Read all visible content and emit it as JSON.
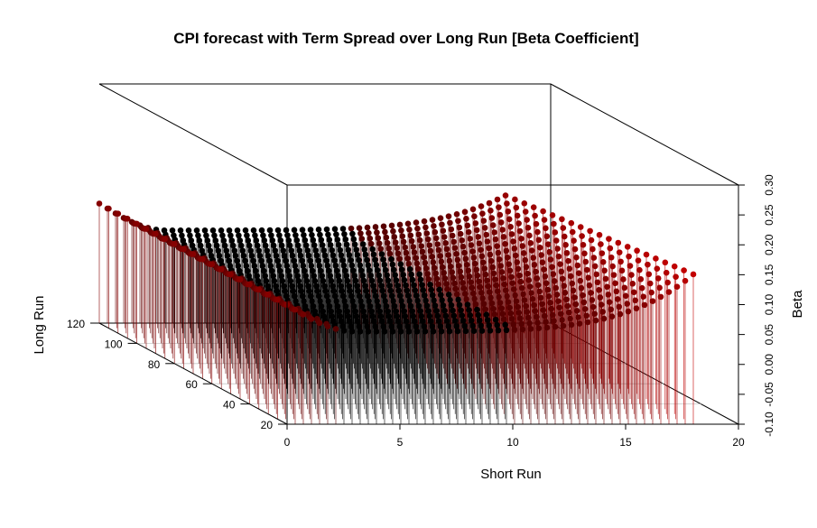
{
  "chart_data": {
    "type": "scatter",
    "subtype": "3d-histogram-lines",
    "title": "CPI forecast with Term Spread over Long Run [Beta Coefficient]",
    "xlabel": "Short Run",
    "ylabel": "Long Run",
    "zlabel": "Beta",
    "xlim": [
      0,
      20
    ],
    "ylim": [
      20,
      120
    ],
    "zlim": [
      -0.1,
      0.3
    ],
    "x_ticks": [
      "0",
      "5",
      "10",
      "15",
      "20"
    ],
    "y_ticks": [
      "20",
      "40",
      "60",
      "80",
      "100",
      "120"
    ],
    "z_ticks": [
      "-0.10",
      "-0.05",
      "0.00",
      "0.05",
      "0.10",
      "0.15",
      "0.20",
      "0.25",
      "0.30"
    ],
    "grid": true,
    "color_low": "#000000",
    "color_high": "#ff0000",
    "series_long_run_values": [
      20,
      25,
      30,
      35,
      40,
      45,
      50,
      55,
      60,
      65,
      70,
      75,
      80,
      85,
      90,
      95,
      100,
      105,
      110,
      115,
      120
    ],
    "curve": {
      "short_run_range": [
        0,
        20
      ],
      "beta_start": 0.1,
      "beta_min": 0.055,
      "beta_end_front": 0.235,
      "beta_end_back": 0.165
    }
  }
}
